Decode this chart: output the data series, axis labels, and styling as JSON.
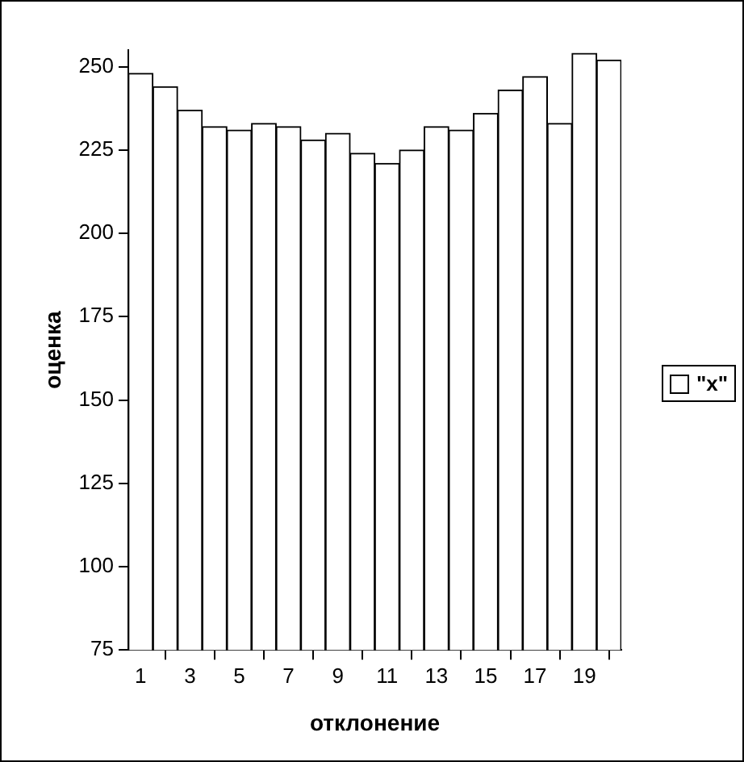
{
  "chart_data": {
    "type": "bar",
    "xlabel": "отклонение",
    "ylabel": "оценка",
    "x": [
      1,
      2,
      3,
      4,
      5,
      6,
      7,
      8,
      9,
      10,
      11,
      12,
      13,
      14,
      15,
      16,
      17,
      18,
      19,
      20
    ],
    "series": [
      {
        "name": "\"x\"",
        "color": "#ffffff",
        "values": [
          248,
          244,
          237,
          232,
          231,
          233,
          232,
          228,
          230,
          224,
          221,
          225,
          232,
          231,
          236,
          243,
          247,
          233,
          254,
          252
        ]
      }
    ],
    "xlim": [
      0.5,
      20.5
    ],
    "xticks": [
      1,
      3,
      5,
      7,
      9,
      11,
      13,
      15,
      17,
      19
    ],
    "ylim": [
      75,
      255
    ],
    "yticks": [
      75,
      100,
      125,
      150,
      175,
      200,
      225,
      250
    ],
    "grid": false,
    "legend": "right"
  }
}
